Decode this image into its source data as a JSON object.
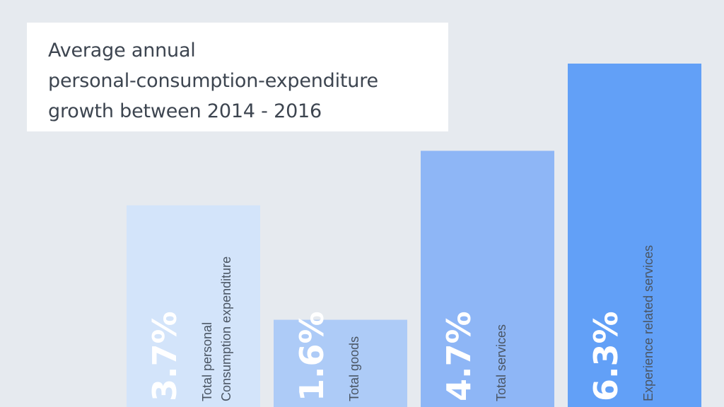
{
  "chart_data": {
    "type": "bar",
    "title": [
      "Average annual",
      "personal-consumption-expenditure",
      "growth between 2014 - 2016"
    ],
    "categories": [
      [
        "Total personal",
        "Consumption expenditure"
      ],
      [
        "Total goods"
      ],
      [
        "Total services"
      ],
      [
        "Experience related services"
      ]
    ],
    "values": [
      3.7,
      1.6,
      4.7,
      6.3
    ],
    "value_labels": [
      "3.7%",
      "1.6%",
      "4.7%",
      "6.3%"
    ],
    "colors": [
      "#d3e4fa",
      "#adcbf7",
      "#8eb6f6",
      "#62a0f7"
    ]
  }
}
